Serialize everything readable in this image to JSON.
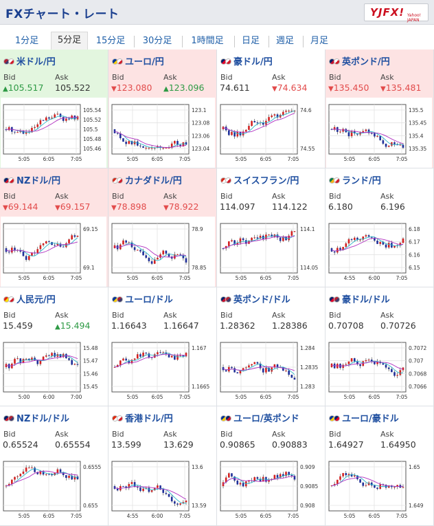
{
  "header": {
    "title": "FXチャート・レート",
    "logo": "YJFX!",
    "logo_sub": "Yahoo! JAPAN"
  },
  "tabs": [
    {
      "label": "1分足",
      "active": false
    },
    {
      "label": "5分足",
      "active": true
    },
    {
      "label": "15分足",
      "active": false
    },
    {
      "label": "30分足",
      "active": false
    },
    {
      "label": "1時間足",
      "active": false
    },
    {
      "label": "日足",
      "active": false
    },
    {
      "label": "週足",
      "active": false
    },
    {
      "label": "月足",
      "active": false
    }
  ],
  "labels": {
    "bid": "Bid",
    "ask": "Ask"
  },
  "colors": {
    "up": "#2e9a45",
    "down": "#e24b4b",
    "up_bg": "#e3f6df",
    "down_bg": "#fde3e3",
    "candle_up": "#d42020",
    "candle_down": "#1f2f9a",
    "ma_short": "#2ab4c8",
    "ma_long": "#b030c0"
  },
  "pairs": [
    {
      "name": "米ドル/円",
      "flags": [
        "us",
        "jp"
      ],
      "bid": "105.517",
      "ask": "105.522",
      "bid_dir": "up",
      "ask_dir": "none",
      "bg": "green",
      "yticks": [
        "105.54",
        "105.52",
        "105.5",
        "105.48",
        "105.46"
      ],
      "xticks": [
        "5:05",
        "6:05",
        "7:05"
      ]
    },
    {
      "name": "ユーロ/円",
      "flags": [
        "eu",
        "jp"
      ],
      "bid": "123.080",
      "ask": "123.096",
      "bid_dir": "down",
      "ask_dir": "up",
      "bg": "red",
      "yticks": [
        "123.1",
        "123.08",
        "123.06",
        "123.04"
      ],
      "xticks": [
        "5:05",
        "6:05",
        "7:05"
      ]
    },
    {
      "name": "豪ドル/円",
      "flags": [
        "au",
        "jp"
      ],
      "bid": "74.611",
      "ask": "74.634",
      "bid_dir": "none",
      "ask_dir": "down",
      "bg": "none",
      "yticks": [
        "74.6",
        "74.55"
      ],
      "xticks": [
        "5:05",
        "6:05",
        "7:05"
      ]
    },
    {
      "name": "英ポンド/円",
      "flags": [
        "gb",
        "jp"
      ],
      "bid": "135.450",
      "ask": "135.481",
      "bid_dir": "down",
      "ask_dir": "down",
      "bg": "red",
      "yticks": [
        "135.5",
        "135.45",
        "135.4",
        "135.35"
      ],
      "xticks": [
        "5:05",
        "6:05",
        "7:05"
      ]
    },
    {
      "name": "NZドル/円",
      "flags": [
        "nz",
        "jp"
      ],
      "bid": "69.144",
      "ask": "69.157",
      "bid_dir": "down",
      "ask_dir": "down",
      "bg": "red",
      "yticks": [
        "69.15",
        "69.1"
      ],
      "xticks": [
        "5:05",
        "6:05",
        "7:05"
      ]
    },
    {
      "name": "カナダドル/円",
      "flags": [
        "ca",
        "jp"
      ],
      "bid": "78.898",
      "ask": "78.922",
      "bid_dir": "down",
      "ask_dir": "down",
      "bg": "red",
      "yticks": [
        "78.9",
        "78.85"
      ],
      "xticks": [
        "5:05",
        "6:05",
        "7:05"
      ]
    },
    {
      "name": "スイスフラン/円",
      "flags": [
        "ch",
        "jp"
      ],
      "bid": "114.097",
      "ask": "114.122",
      "bid_dir": "none",
      "ask_dir": "none",
      "bg": "none",
      "yticks": [
        "114.1",
        "114.05"
      ],
      "xticks": [
        "5:05",
        "6:05",
        "7:05"
      ]
    },
    {
      "name": "ランド/円",
      "flags": [
        "za",
        "jp"
      ],
      "bid": "6.180",
      "ask": "6.196",
      "bid_dir": "none",
      "ask_dir": "none",
      "bg": "none",
      "yticks": [
        "6.18",
        "6.17",
        "6.16",
        "6.15"
      ],
      "xticks": [
        "4:55",
        "6:00",
        "7:05"
      ]
    },
    {
      "name": "人民元/円",
      "flags": [
        "cn",
        "jp"
      ],
      "bid": "15.459",
      "ask": "15.494",
      "bid_dir": "none",
      "ask_dir": "up",
      "bg": "none",
      "yticks": [
        "15.48",
        "15.47",
        "15.46",
        "15.45"
      ],
      "xticks": [
        "5:00",
        "6:00",
        "7:00"
      ]
    },
    {
      "name": "ユーロ/ドル",
      "flags": [
        "eu",
        "us"
      ],
      "bid": "1.16643",
      "ask": "1.16647",
      "bid_dir": "none",
      "ask_dir": "none",
      "bg": "none",
      "yticks": [
        "1.167",
        "1.1665"
      ],
      "xticks": [
        "5:05",
        "6:05",
        "7:05"
      ]
    },
    {
      "name": "英ポンド/ドル",
      "flags": [
        "gb",
        "us"
      ],
      "bid": "1.28362",
      "ask": "1.28386",
      "bid_dir": "none",
      "ask_dir": "none",
      "bg": "none",
      "yticks": [
        "1.284",
        "1.2835",
        "1.283"
      ],
      "xticks": [
        "5:05",
        "6:05",
        "7:05"
      ]
    },
    {
      "name": "豪ドル/ドル",
      "flags": [
        "au",
        "us"
      ],
      "bid": "0.70708",
      "ask": "0.70726",
      "bid_dir": "none",
      "ask_dir": "none",
      "bg": "none",
      "yticks": [
        "0.7072",
        "0.707",
        "0.7068",
        "0.7066"
      ],
      "xticks": [
        "5:05",
        "6:05",
        "7:05"
      ]
    },
    {
      "name": "NZドル/ドル",
      "flags": [
        "nz",
        "us"
      ],
      "bid": "0.65524",
      "ask": "0.65554",
      "bid_dir": "none",
      "ask_dir": "none",
      "bg": "none",
      "yticks": [
        "0.6555",
        "0.655"
      ],
      "xticks": [
        "5:05",
        "6:05",
        "7:05"
      ]
    },
    {
      "name": "香港ドル/円",
      "flags": [
        "hk",
        "jp"
      ],
      "bid": "13.599",
      "ask": "13.629",
      "bid_dir": "none",
      "ask_dir": "none",
      "bg": "none",
      "yticks": [
        "13.6",
        "13.59"
      ],
      "xticks": [
        "4:55",
        "6:00",
        "7:05"
      ]
    },
    {
      "name": "ユーロ/英ポンド",
      "flags": [
        "eu",
        "gb"
      ],
      "bid": "0.90865",
      "ask": "0.90883",
      "bid_dir": "none",
      "ask_dir": "none",
      "bg": "none",
      "yticks": [
        "0.909",
        "0.9085",
        "0.908"
      ],
      "xticks": [
        "5:05",
        "6:05",
        "7:05"
      ]
    },
    {
      "name": "ユーロ/豪ドル",
      "flags": [
        "eu",
        "au"
      ],
      "bid": "1.64927",
      "ask": "1.64950",
      "bid_dir": "none",
      "ask_dir": "none",
      "bg": "none",
      "yticks": [
        "1.65",
        "1.649"
      ],
      "xticks": [
        "5:05",
        "6:05",
        "7:05"
      ]
    }
  ]
}
